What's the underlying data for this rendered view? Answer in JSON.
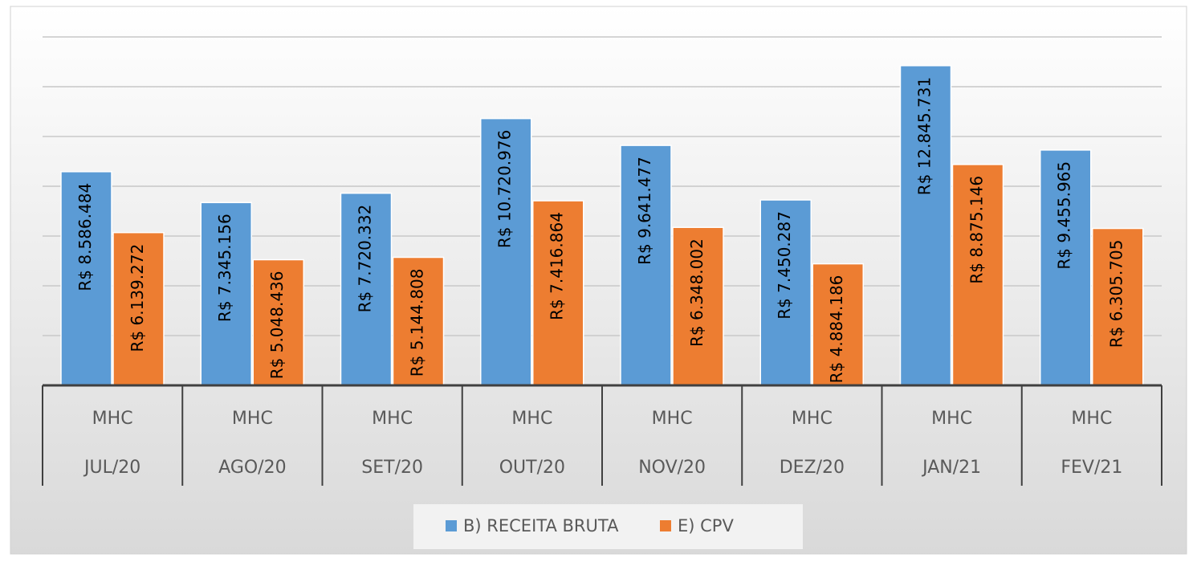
{
  "chart_data": {
    "type": "bar",
    "categories": [
      "JUL/20",
      "AGO/20",
      "SET/20",
      "OUT/20",
      "NOV/20",
      "DEZ/20",
      "JAN/21",
      "FEV/21"
    ],
    "subcategories": [
      "MHC",
      "MHC",
      "MHC",
      "MHC",
      "MHC",
      "MHC",
      "MHC",
      "MHC"
    ],
    "series": [
      {
        "name": "B) RECEITA BRUTA",
        "color": "#5b9bd5",
        "values": [
          8586484,
          7345156,
          7720332,
          10720976,
          9641477,
          7450287,
          12845731,
          9455965
        ],
        "value_labels": [
          "R$ 8.586.484",
          "R$ 7.345.156",
          "R$ 7.720.332",
          "R$ 10.720.976",
          "R$ 9.641.477",
          "R$ 7.450.287",
          "R$ 12.845.731",
          "R$ 9.455.965"
        ]
      },
      {
        "name": "E) CPV",
        "color": "#ed7d31",
        "values": [
          6139272,
          5048436,
          5144808,
          7416864,
          6348002,
          4884186,
          8875146,
          6305705
        ],
        "value_labels": [
          "R$ 6.139.272",
          "R$ 5.048.436",
          "R$ 5.144.808",
          "R$ 7.416.864",
          "R$ 6.348.002",
          "R$ 4.884.186",
          "R$ 8.875.146",
          "R$ 6.305.705"
        ]
      }
    ],
    "ylim": [
      0,
      14000000
    ],
    "yticks": [
      0,
      2000000,
      4000000,
      6000000,
      8000000,
      10000000,
      12000000,
      14000000
    ],
    "grid": true,
    "legend": "bottom"
  }
}
